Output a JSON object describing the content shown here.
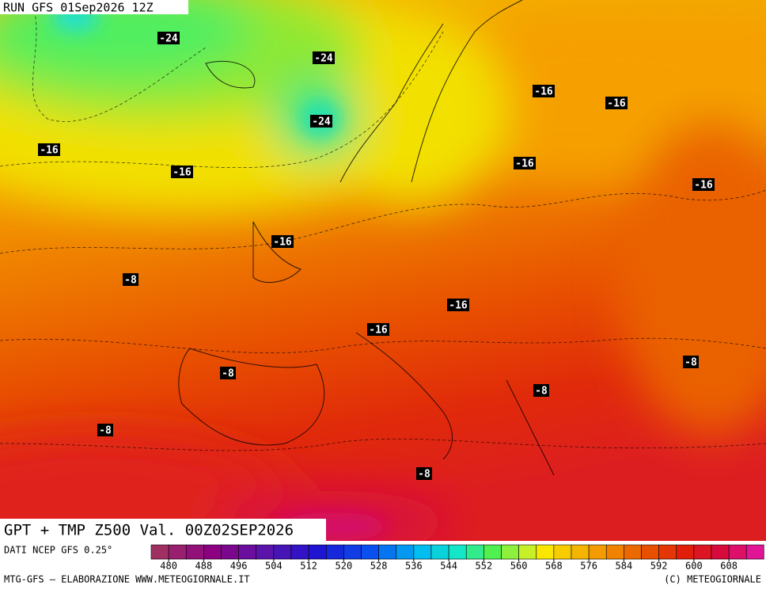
{
  "header": {
    "run": "RUN GFS 01Sep2026 12Z"
  },
  "title": "GPT + TMP Z500 Val. 00Z02SEP2026",
  "source": "DATI NCEP GFS 0.25°",
  "footer": {
    "left": "MTG-GFS — ELABORAZIONE WWW.METEOGIORNALE.IT",
    "right": "(C) METEOGIORNALE"
  },
  "contour_labels": [
    "-24",
    "-24",
    "-24",
    "-16",
    "-16",
    "-16",
    "-16",
    "-16",
    "-16",
    "-16",
    "-16",
    "-16",
    "-8",
    "-8",
    "-8",
    "-8",
    "-8",
    "-8"
  ],
  "colorbar": {
    "labels": [
      480,
      488,
      496,
      504,
      512,
      520,
      528,
      536,
      544,
      552,
      560,
      568,
      576,
      584,
      592,
      600,
      608
    ]
  }
}
